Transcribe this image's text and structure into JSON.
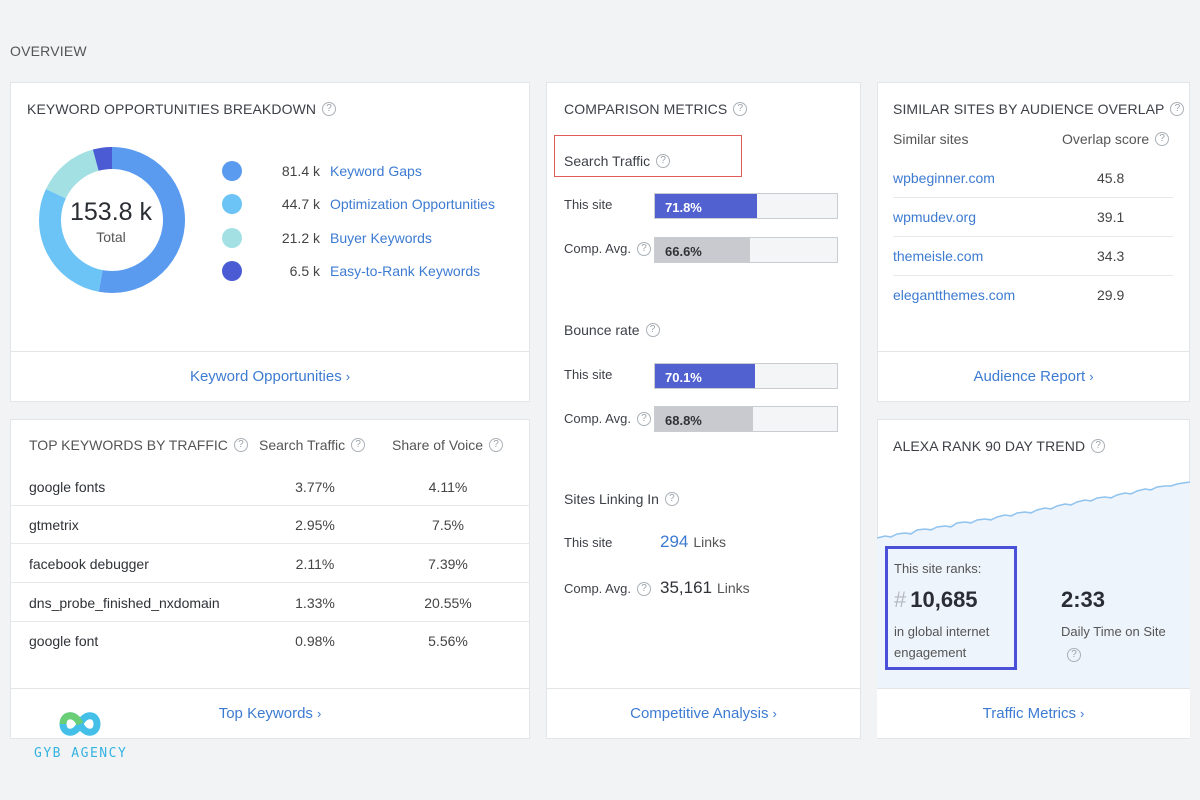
{
  "page": {
    "title": "OVERVIEW"
  },
  "keyword_breakdown": {
    "title": "KEYWORD OPPORTUNITIES BREAKDOWN",
    "help_icon": "question-circle-icon",
    "total_value": "153.8 k",
    "total_label": "Total",
    "items": [
      {
        "value": "81.4 k",
        "label": "Keyword Gaps",
        "amount": 81.4,
        "color": "#5a9bf0"
      },
      {
        "value": "44.7 k",
        "label": "Optimization Opportunities",
        "amount": 44.7,
        "color": "#6cc3f5"
      },
      {
        "value": "21.2 k",
        "label": "Buyer Keywords",
        "amount": 21.2,
        "color": "#a3e0e4"
      },
      {
        "value": "6.5 k",
        "label": "Easy-to-Rank Keywords",
        "amount": 6.5,
        "color": "#4a5bd4"
      }
    ],
    "footer_link": "Keyword Opportunities"
  },
  "top_keywords": {
    "title": "TOP KEYWORDS BY TRAFFIC",
    "col_traffic": "Search Traffic",
    "col_voice": "Share of Voice",
    "rows": [
      {
        "keyword": "google fonts",
        "traffic": "3.77%",
        "voice": "4.11%"
      },
      {
        "keyword": "gtmetrix",
        "traffic": "2.95%",
        "voice": "7.5%"
      },
      {
        "keyword": "facebook debugger",
        "traffic": "2.11%",
        "voice": "7.39%"
      },
      {
        "keyword": "dns_probe_finished_nxdomain",
        "traffic": "1.33%",
        "voice": "20.55%"
      },
      {
        "keyword": "google font",
        "traffic": "0.98%",
        "voice": "5.56%"
      }
    ],
    "footer_link": "Top Keywords"
  },
  "comparison": {
    "title": "COMPARISON METRICS",
    "search_traffic": {
      "label": "Search Traffic",
      "this_label": "This site",
      "this_value": "71.8%",
      "this_fraction": 0.718,
      "avg_label": "Comp. Avg.",
      "avg_value": "66.6%",
      "avg_fraction": 0.666
    },
    "bounce_rate": {
      "label": "Bounce rate",
      "this_label": "This site",
      "this_value": "70.1%",
      "this_fraction": 0.701,
      "avg_label": "Comp. Avg.",
      "avg_value": "68.8%",
      "avg_fraction": 0.688
    },
    "linking": {
      "label": "Sites Linking In",
      "this_label": "This site",
      "this_value": "294",
      "this_unit": "Links",
      "avg_label": "Comp. Avg.",
      "avg_value": "35,161",
      "avg_unit": "Links"
    },
    "highlight_color": "#e25b5b",
    "this_bar_color": "#5161cf",
    "avg_bar_color": "#c8cacf",
    "footer_link": "Competitive Analysis"
  },
  "similar_sites": {
    "title": "SIMILAR SITES BY AUDIENCE OVERLAP",
    "col_site": "Similar sites",
    "col_score": "Overlap score",
    "rows": [
      {
        "site": "wpbeginner.com",
        "score": "45.8"
      },
      {
        "site": "wpmudev.org",
        "score": "39.1"
      },
      {
        "site": "themeisle.com",
        "score": "34.3"
      },
      {
        "site": "elegantthemes.com",
        "score": "29.9"
      }
    ],
    "footer_link": "Audience Report"
  },
  "alexa": {
    "title": "ALEXA RANK 90 DAY TREND",
    "rank_label": "This site ranks:",
    "rank_hash": "#",
    "rank_value": "10,685",
    "rank_desc": "in global internet engagement",
    "time_value": "2:33",
    "time_label": "Daily Time on Site",
    "box_color": "#4a50d8",
    "line_color": "#8fc3ee",
    "footer_link": "Traffic Metrics"
  },
  "brand": {
    "name": "GYB AGENCY",
    "color": "#34b3e0",
    "logo_icon": "infinity-logo-icon"
  }
}
